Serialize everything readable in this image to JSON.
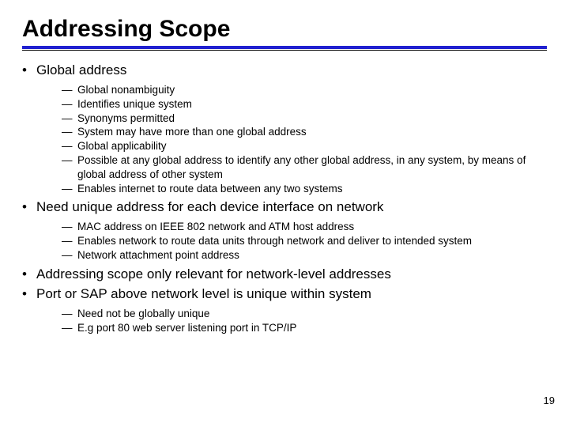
{
  "slide": {
    "title": "Addressing Scope",
    "page_number": "19",
    "title_underline_color": "#2020d0",
    "text_color": "#000000",
    "background_color": "#ffffff",
    "bullets": [
      {
        "text": "Global address",
        "subs": [
          "Global nonambiguity",
          "Identifies unique system",
          "Synonyms permitted",
          "System may have more than one global address",
          "Global applicability",
          "Possible at any global address to identify any other global address, in any system, by means of global address of other system",
          "Enables internet to route data between any two systems"
        ]
      },
      {
        "text": "Need unique address for each device interface on network",
        "subs": [
          "MAC address on IEEE 802 network and ATM host address",
          "Enables network to route data units through network and deliver to intended system",
          "Network attachment point address"
        ]
      },
      {
        "text": "Addressing scope only relevant for network-level addresses",
        "subs": []
      },
      {
        "text": "Port or SAP above network level is unique within system",
        "subs": [
          "Need not be globally unique",
          "E.g port 80 web server listening port in TCP/IP"
        ]
      }
    ]
  }
}
